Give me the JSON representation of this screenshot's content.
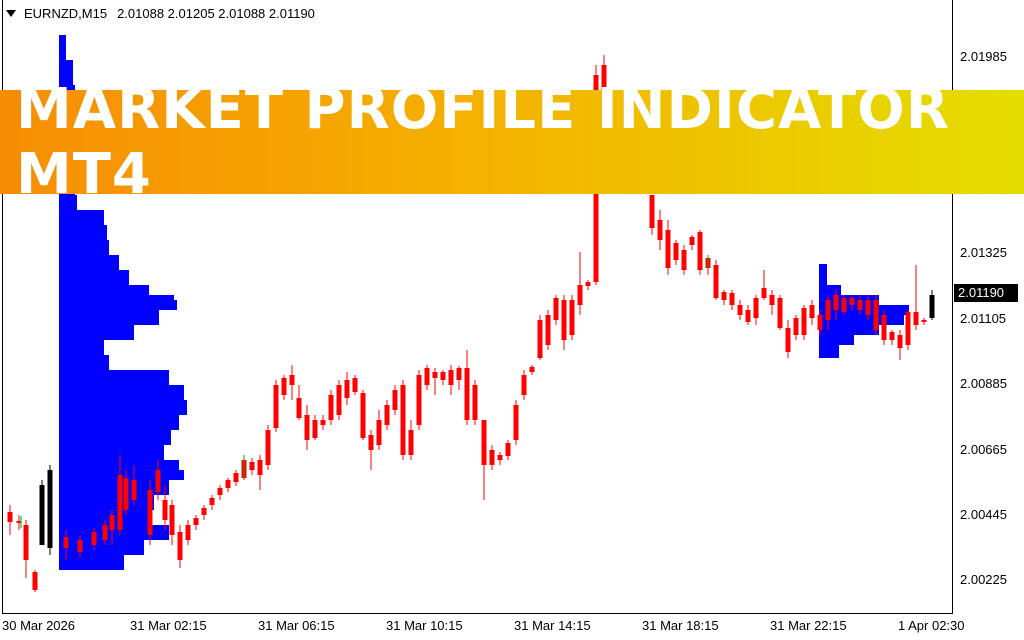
{
  "header": {
    "symbol_timeframe": "EURNZD,M15",
    "ohlc": "2.01088 2.01205 2.01088 2.01190"
  },
  "price_axis": [
    "2.01985",
    "2.01325",
    "2.01105",
    "2.00885",
    "2.00665",
    "2.00445",
    "2.00225"
  ],
  "current_price": "2.01190",
  "time_axis": [
    "30 Mar 2026",
    "31 Mar 02:15",
    "31 Mar 06:15",
    "31 Mar 10:15",
    "31 Mar 14:15",
    "31 Mar 18:15",
    "31 Mar 22:15",
    "1 Apr 02:30"
  ],
  "banner": {
    "title": "MARKET PROFILE INDICATOR MT4"
  },
  "colors": {
    "bull": "#000000",
    "bear": "#ff0000",
    "doji": "#00aa00",
    "profile": "#0000ff",
    "background": "#ffffff"
  }
}
